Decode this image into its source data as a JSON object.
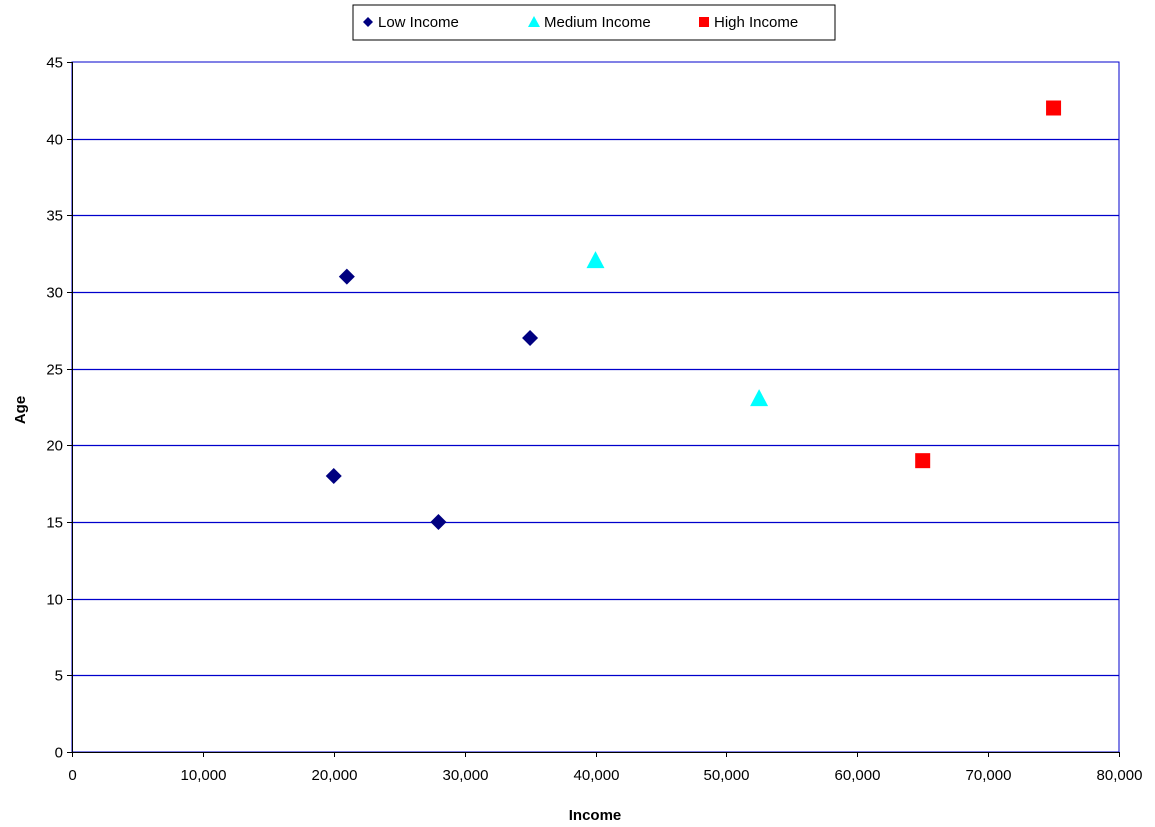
{
  "chart_data": {
    "type": "scatter",
    "title": "",
    "xlabel": "Income",
    "ylabel": "Age",
    "xlim": [
      0,
      80000
    ],
    "ylim": [
      0,
      45
    ],
    "x_ticks": [
      0,
      10000,
      20000,
      30000,
      40000,
      50000,
      60000,
      70000,
      80000
    ],
    "x_tick_labels": [
      "0",
      "10,000",
      "20,000",
      "30,000",
      "40,000",
      "50,000",
      "60,000",
      "70,000",
      "80,000"
    ],
    "y_ticks": [
      0,
      5,
      10,
      15,
      20,
      25,
      30,
      35,
      40,
      45
    ],
    "y_tick_labels": [
      "0",
      "5",
      "10",
      "15",
      "20",
      "25",
      "30",
      "35",
      "40",
      "45"
    ],
    "grid": "horizontal",
    "grid_color": "#0000CC",
    "legend_position": "top-center",
    "series": [
      {
        "name": "Low Income",
        "marker": "diamond",
        "color": "#000080",
        "points": [
          {
            "x": 20000,
            "y": 18
          },
          {
            "x": 21000,
            "y": 31
          },
          {
            "x": 28000,
            "y": 15
          },
          {
            "x": 35000,
            "y": 27
          }
        ]
      },
      {
        "name": "Medium Income",
        "marker": "triangle",
        "color": "#00FFFF",
        "points": [
          {
            "x": 40000,
            "y": 32
          },
          {
            "x": 52500,
            "y": 23
          }
        ]
      },
      {
        "name": "High Income",
        "marker": "square",
        "color": "#FF0000",
        "points": [
          {
            "x": 65000,
            "y": 19
          },
          {
            "x": 75000,
            "y": 42
          }
        ]
      }
    ]
  }
}
